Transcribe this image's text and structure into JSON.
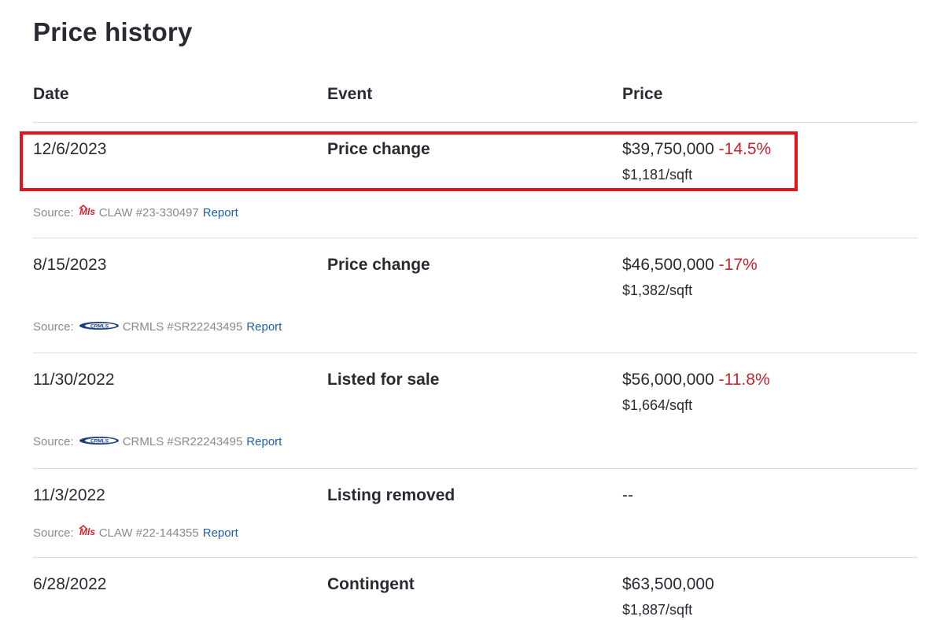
{
  "title": "Price history",
  "columns": {
    "date": "Date",
    "event": "Event",
    "price": "Price"
  },
  "rows": [
    {
      "date": "12/6/2023",
      "event": "Price change",
      "price": "$39,750,000",
      "change": "-14.5%",
      "sqft": "$1,181/sqft",
      "source_label": "Source:",
      "source_logo": "mls-icon",
      "source_text": "CLAW #23-330497",
      "report": "Report"
    },
    {
      "date": "8/15/2023",
      "event": "Price change",
      "price": "$46,500,000",
      "change": "-17%",
      "sqft": "$1,382/sqft",
      "source_label": "Source:",
      "source_logo": "crmls-icon",
      "source_text": "CRMLS #SR22243495",
      "report": "Report"
    },
    {
      "date": "11/30/2022",
      "event": "Listed for sale",
      "price": "$56,000,000",
      "change": "-11.8%",
      "sqft": "$1,664/sqft",
      "source_label": "Source:",
      "source_logo": "crmls-icon",
      "source_text": "CRMLS #SR22243495",
      "report": "Report"
    },
    {
      "date": "11/3/2022",
      "event": "Listing removed",
      "price": "--",
      "change": "",
      "sqft": "",
      "source_label": "Source:",
      "source_logo": "mls-icon",
      "source_text": "CLAW #22-144355",
      "report": "Report"
    },
    {
      "date": "6/28/2022",
      "event": "Contingent",
      "price": "$63,500,000",
      "change": "",
      "sqft": "$1,887/sqft"
    }
  ],
  "colors": {
    "negative_change": "#c1272d",
    "link": "#1f5fa8",
    "highlight_border": "#e3151a"
  }
}
